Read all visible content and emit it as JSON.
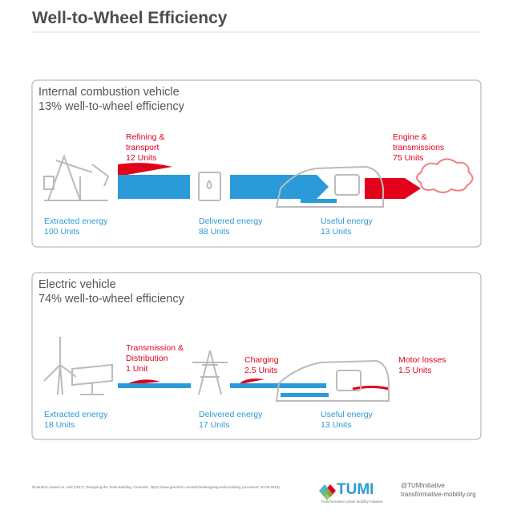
{
  "header": {
    "title": "Well-to-Wheel Efficiency"
  },
  "panels": [
    {
      "title": "Internal combustion vehicle",
      "subtitle": "13% well-to-wheel efficiency",
      "losses": [
        {
          "label": "Refining & transport",
          "amount": "12 Units"
        },
        {
          "label": "Engine & transmissions",
          "amount": "75 Units"
        }
      ],
      "stages": [
        {
          "label": "Extracted energy",
          "amount": "100 Units"
        },
        {
          "label": "Delivered energy",
          "amount": "88 Units"
        },
        {
          "label": "Useful energy",
          "amount": "13 Units"
        }
      ]
    },
    {
      "title": "Electric vehicle",
      "subtitle": "74% well-to-wheel efficiency",
      "losses": [
        {
          "label": "Transmission & Distribution",
          "amount": "1 Unit"
        },
        {
          "label": "Charging",
          "amount": "2.5 Units"
        },
        {
          "label": "Motor losses",
          "amount": "1.5 Units"
        }
      ],
      "stages": [
        {
          "label": "Extracted energy",
          "amount": "18 Units"
        },
        {
          "label": "Delivered energy",
          "amount": "17 Units"
        },
        {
          "label": "Useful energy",
          "amount": "13 Units"
        }
      ]
    }
  ],
  "footer": {
    "source": "Illustration based on: Heil (2017). Designing the Tesla Building. GreenBiz. https://www.greenbiz.com/article/designing-tesla-building (accessed: 20.09.2018)",
    "logo": "TUMI",
    "logo_tagline": "Transformative Urban Mobility Initiative",
    "handle": "@TUMInitiative",
    "website": "transformative-mobility.org"
  }
}
